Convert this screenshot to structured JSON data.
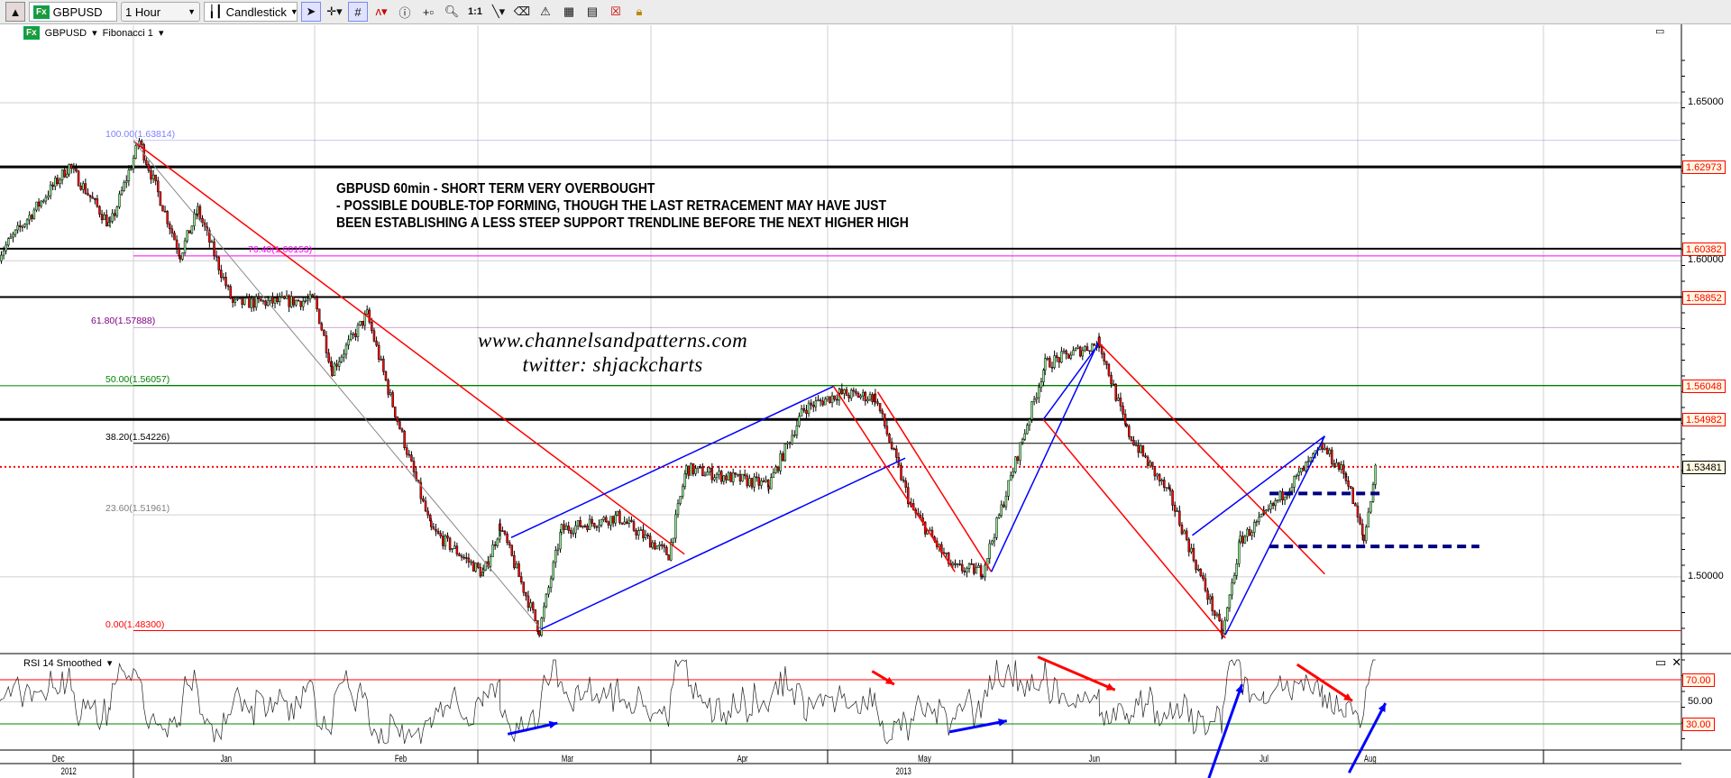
{
  "toolbar": {
    "instrument": "GBPUSD",
    "interval": "1 Hour",
    "chart_style": "Candlestick",
    "instrument_badge": "Fx",
    "zoom_1to1": "1:1",
    "icons": [
      "scroll-up-icon",
      "pointer-icon",
      "crosshair-icon",
      "grid-icon",
      "indicator-icon",
      "info-icon",
      "data-box-icon",
      "zoom-icon",
      "line-tool-icon",
      "eraser-icon",
      "alert-icon",
      "bar-chart-icon",
      "properties-icon",
      "close-icon",
      "lock-icon"
    ]
  },
  "panel": {
    "instrument": "GBPUSD",
    "drawing": "Fibonacci 1",
    "indicator": "RSI 14 Smoothed"
  },
  "annotation": {
    "line1": "GBPUSD 60min - SHORT TERM VERY OVERBOUGHT",
    "line2": "- POSSIBLE DOUBLE-TOP FORMING, THOUGH THE LAST RETRACEMENT MAY HAVE JUST",
    "line3": "BEEN ESTABLISHING A LESS STEEP SUPPORT TRENDLINE BEFORE THE NEXT HIGHER HIGH"
  },
  "watermark": {
    "site": "www.channelsandpatterns.com",
    "twitter": "twitter: shjackcharts"
  },
  "chart_data": {
    "type": "candlestick",
    "symbol": "GBPUSD",
    "timeframe": "60min",
    "ylim": [
      1.465,
      1.675
    ],
    "y_ticks": [
      "1.65000",
      "1.60000",
      "1.50000"
    ],
    "x_months": [
      "Dec",
      "Jan",
      "Feb",
      "Mar",
      "Apr",
      "May",
      "Jun",
      "Jul",
      "Aug"
    ],
    "x_years": [
      "2012",
      "2013"
    ],
    "swing_points": [
      [
        "2012-12-09",
        1.602
      ],
      [
        "2012-12-21",
        1.63
      ],
      [
        "2012-12-28",
        1.611
      ],
      [
        "2013-01-02",
        1.6378
      ],
      [
        "2013-01-09",
        1.602
      ],
      [
        "2013-01-12",
        1.616
      ],
      [
        "2013-01-18",
        1.5865
      ],
      [
        "2013-02-01",
        1.5875
      ],
      [
        "2013-02-04",
        1.5656
      ],
      [
        "2013-02-10",
        1.583
      ],
      [
        "2013-02-14",
        1.5568
      ],
      [
        "2013-02-21",
        1.5149
      ],
      [
        "2013-03-02",
        1.5009
      ],
      [
        "2013-03-05",
        1.516
      ],
      [
        "2013-03-12",
        1.483
      ],
      [
        "2013-03-16",
        1.515
      ],
      [
        "2013-03-26",
        1.519
      ],
      [
        "2013-04-04",
        1.507
      ],
      [
        "2013-04-07",
        1.5342
      ],
      [
        "2013-04-21",
        1.529
      ],
      [
        "2013-04-27",
        1.5533
      ],
      [
        "2013-05-03",
        1.558
      ],
      [
        "2013-05-09",
        1.5568
      ],
      [
        "2013-05-15",
        1.522
      ],
      [
        "2013-05-22",
        1.5027
      ],
      [
        "2013-05-27",
        1.502
      ],
      [
        "2013-06-07",
        1.5673
      ],
      [
        "2013-06-17",
        1.5742
      ],
      [
        "2013-06-22",
        1.5463
      ],
      [
        "2013-06-30",
        1.5254
      ],
      [
        "2013-07-09",
        1.4817
      ],
      [
        "2013-07-12",
        1.5115
      ],
      [
        "2013-07-16",
        1.519
      ],
      [
        "2013-07-26",
        1.541
      ],
      [
        "2013-07-30",
        1.532
      ],
      [
        "2013-08-02",
        1.5115
      ],
      [
        "2013-08-04",
        1.53481
      ]
    ],
    "last_price": "1.53481",
    "price_levels": [
      {
        "label": "1.62973",
        "value": 1.62973,
        "style": "thick"
      },
      {
        "label": "1.60382",
        "value": 1.60382,
        "style": "normal"
      },
      {
        "label": "1.58852",
        "value": 1.58852,
        "style": "normal"
      },
      {
        "label": "1.56048",
        "value": 1.56048,
        "style": "green"
      },
      {
        "label": "1.54982",
        "value": 1.54982,
        "style": "thick"
      }
    ],
    "fibonacci": [
      {
        "label": "100.00(1.63814)",
        "value": 1.63814,
        "color": "#8080ff"
      },
      {
        "label": "76.40(1.60153)",
        "value": 1.60153,
        "color": "#ff00ff"
      },
      {
        "label": "61.80(1.57888)",
        "value": 1.57888,
        "color": "#800080"
      },
      {
        "label": "50.00(1.56057)",
        "value": 1.56057,
        "color": "#008000"
      },
      {
        "label": "38.20(1.54226)",
        "value": 1.54226,
        "color": "#000000"
      },
      {
        "label": "23.60(1.51961)",
        "value": 1.51961,
        "color": "#808080"
      },
      {
        "label": "0.00(1.48300)",
        "value": 1.483,
        "color": "#ff0000"
      }
    ],
    "rsi": {
      "period": 14,
      "levels": [
        {
          "label": "70.00",
          "value": 70
        },
        {
          "label": "50.00",
          "value": 50
        },
        {
          "label": "30.00",
          "value": 30
        }
      ]
    },
    "colors": {
      "up": "#90ee90",
      "down": "#ff0000",
      "wick": "#000000",
      "trend_up": "#0000ff",
      "trend_down": "#ff0000",
      "support": "#000080"
    }
  }
}
